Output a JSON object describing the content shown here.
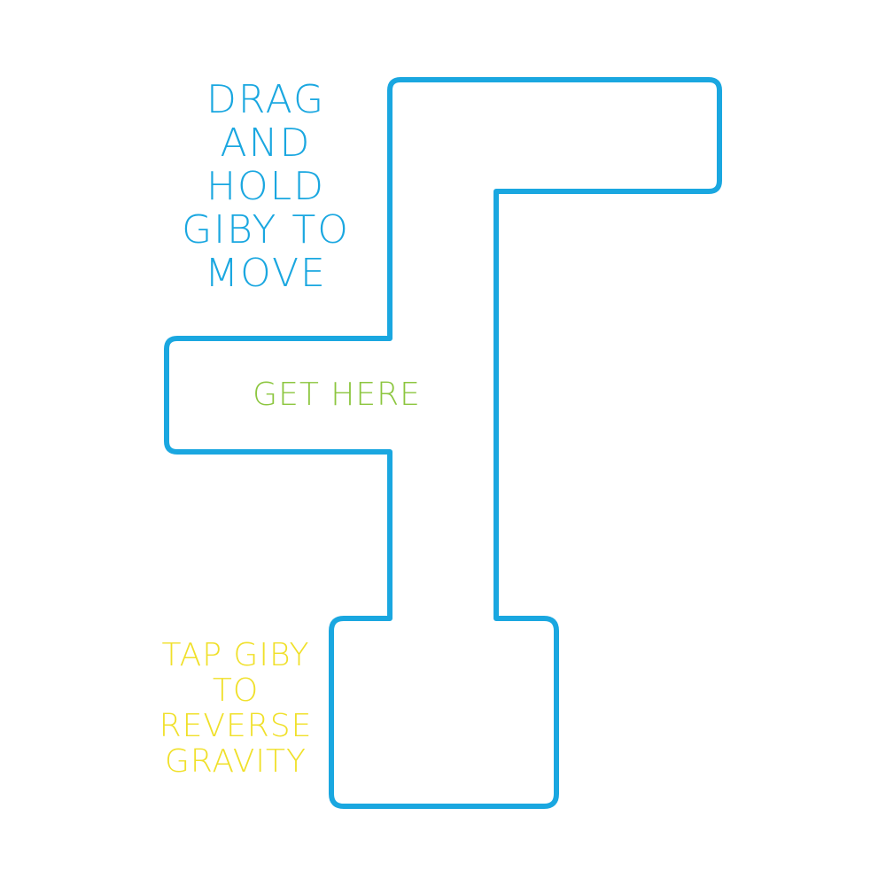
{
  "colors": {
    "background": "#ffffff",
    "wall": "#1aa7e0",
    "hint_drag": "#1aa7e0",
    "goal": "#8cc63f",
    "hint_tap": "#f0e02a"
  },
  "hints": {
    "drag": "DRAG\nAND\nHOLD\nGIBY TO\nMOVE",
    "tap": "TAP GIBY\nTO\nREVERSE\nGRAVITY"
  },
  "goal": {
    "label": "GET HERE"
  }
}
